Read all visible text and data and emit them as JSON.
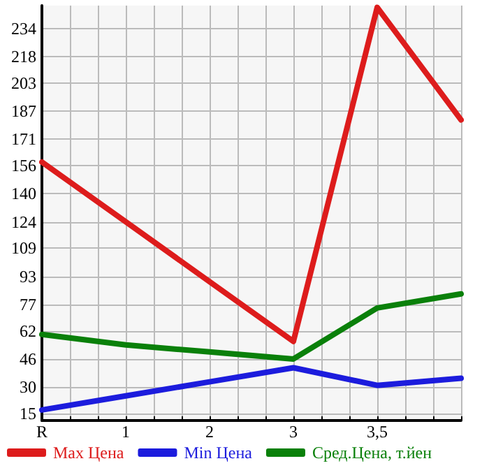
{
  "chart_data": {
    "type": "line",
    "categories": [
      "R",
      "1",
      "2",
      "3",
      "3,5",
      null
    ],
    "series": [
      {
        "name": "Max Цена",
        "color": "#dd1c1c",
        "values": [
          158,
          124,
          90,
          56,
          246,
          182
        ]
      },
      {
        "name": "Min Цена",
        "color": "#1c1cdd",
        "values": [
          17,
          25,
          33,
          41,
          31,
          35
        ]
      },
      {
        "name": "Сред.Цена, т.йен",
        "color": "#0a800a",
        "values": [
          60,
          54,
          50,
          46,
          75,
          83
        ]
      }
    ],
    "ylim": [
      11,
      247
    ],
    "yticks": [
      15,
      30,
      46,
      62,
      77,
      93,
      109,
      124,
      140,
      156,
      171,
      187,
      203,
      218,
      234
    ],
    "grid": true,
    "legend": "bottom",
    "marker": "none",
    "line_style": "solid"
  }
}
